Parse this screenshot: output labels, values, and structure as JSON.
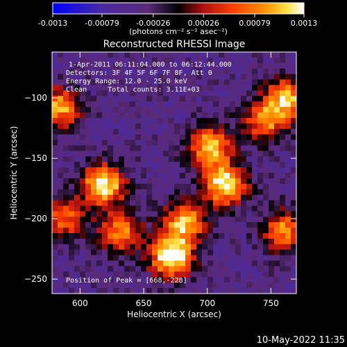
{
  "chart_data": {
    "type": "heatmap",
    "title": "Reconstructed RHESSI Image",
    "xlabel": "Heliocentric X (arcsec)",
    "ylabel": "Heliocentric Y (arcsec)",
    "xlim": [
      578,
      770
    ],
    "ylim": [
      -262,
      -62
    ],
    "x_ticks": [
      600,
      650,
      700,
      750
    ],
    "y_ticks": [
      -250,
      -200,
      -150,
      -100
    ],
    "colorbar": {
      "min": -0.0013,
      "max": 0.0013,
      "tick_values": [
        -0.0013,
        -0.00079,
        -0.00026,
        0.00026,
        0.00079,
        0.0013
      ],
      "tick_labels": [
        "-0.0013",
        "-0.00079",
        "-0.00026",
        "0.00026",
        "0.00079",
        "0.0013"
      ],
      "units_label": "(photons cm⁻² s⁻¹ asec⁻²)",
      "colormap": [
        "#0000ff",
        "#4b2aa0",
        "#5a2a78",
        "#000000",
        "#b01010",
        "#ff4000",
        "#ff9000",
        "#ffe040",
        "#ffffff"
      ]
    },
    "annotations": [
      "1-Apr-2011 06:11:04.000 to 06:12:44.000",
      "Detectors: 3F 4F 5F 6F 7F 8F, Att 0",
      "Energy Range: 12.0 - 25.0 keV",
      "Clean     Total counts: 3.11E+03"
    ],
    "peak_label": "Position of Peak = [668,-228]",
    "sources": [
      {
        "x": 618,
        "y": -172,
        "intensity": 0.00125
      },
      {
        "x": 672,
        "y": -232,
        "intensity": 0.0013
      },
      {
        "x": 714,
        "y": -172,
        "intensity": 0.00118
      },
      {
        "x": 702,
        "y": -140,
        "intensity": 0.00095
      },
      {
        "x": 682,
        "y": -203,
        "intensity": 0.0009
      },
      {
        "x": 632,
        "y": -212,
        "intensity": 0.0007
      },
      {
        "x": 584,
        "y": -108,
        "intensity": 0.0008
      },
      {
        "x": 762,
        "y": -100,
        "intensity": 0.0009
      },
      {
        "x": 745,
        "y": -120,
        "intensity": 0.0006
      },
      {
        "x": 760,
        "y": -210,
        "intensity": 0.0007
      },
      {
        "x": 588,
        "y": -200,
        "intensity": 0.0005
      }
    ],
    "grid": false
  },
  "footer_timestamp": "10-May-2022 11:35"
}
